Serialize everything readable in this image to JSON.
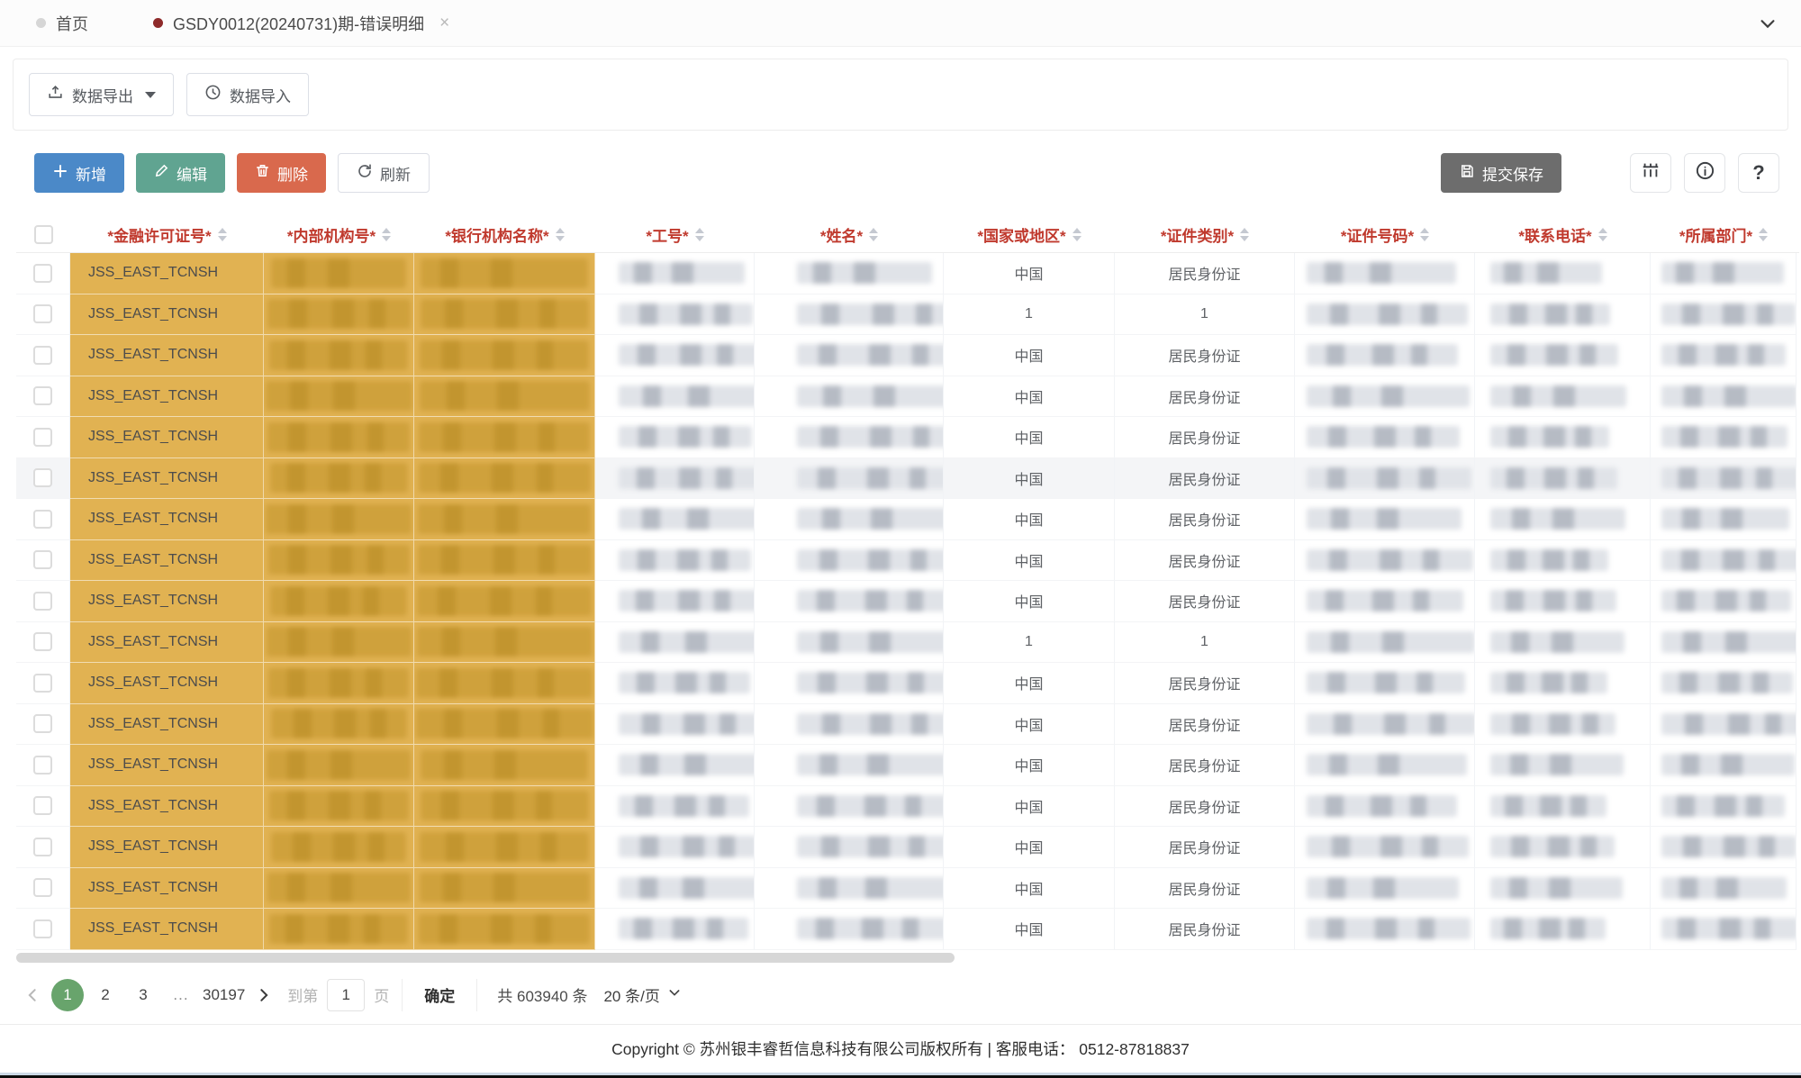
{
  "colors": {
    "gold": "#e1b252",
    "gold-dark": "#cfa13c",
    "red-header": "#c03a2e",
    "blue": "#4b89c8",
    "green": "#60a491",
    "orange": "#d9694d",
    "dark-btn": "#6d6d6d",
    "page-green": "#68a46c",
    "tab-dot-red": "#8e2a2a"
  },
  "tabs": {
    "home_label": "首页",
    "active_label": "GSDY0012(20240731)期-错误明细",
    "close_label": "×"
  },
  "io_toolbar": {
    "export_label": "数据导出",
    "import_label": "数据导入"
  },
  "actions": {
    "add_label": "新增",
    "edit_label": "编辑",
    "delete_label": "删除",
    "refresh_label": "刷新",
    "submit_label": "提交保存",
    "help_label": "?"
  },
  "table": {
    "columns": [
      "*金融许可证号*",
      "*内部机构号*",
      "*银行机构名称*",
      "*工号*",
      "*姓名*",
      "*国家或地区*",
      "*证件类别*",
      "*证件号码*",
      "*联系电话*",
      "*所属部门*"
    ],
    "hover_row_index": 5,
    "rows": [
      {
        "license": "JSS_EAST_TCNSH",
        "country": "中国",
        "id_type": "居民身份证"
      },
      {
        "license": "JSS_EAST_TCNSH",
        "country": "1",
        "id_type": "1"
      },
      {
        "license": "JSS_EAST_TCNSH",
        "country": "中国",
        "id_type": "居民身份证"
      },
      {
        "license": "JSS_EAST_TCNSH",
        "country": "中国",
        "id_type": "居民身份证"
      },
      {
        "license": "JSS_EAST_TCNSH",
        "country": "中国",
        "id_type": "居民身份证"
      },
      {
        "license": "JSS_EAST_TCNSH",
        "country": "中国",
        "id_type": "居民身份证"
      },
      {
        "license": "JSS_EAST_TCNSH",
        "country": "中国",
        "id_type": "居民身份证"
      },
      {
        "license": "JSS_EAST_TCNSH",
        "country": "中国",
        "id_type": "居民身份证"
      },
      {
        "license": "JSS_EAST_TCNSH",
        "country": "中国",
        "id_type": "居民身份证"
      },
      {
        "license": "JSS_EAST_TCNSH",
        "country": "1",
        "id_type": "1"
      },
      {
        "license": "JSS_EAST_TCNSH",
        "country": "中国",
        "id_type": "居民身份证"
      },
      {
        "license": "JSS_EAST_TCNSH",
        "country": "中国",
        "id_type": "居民身份证"
      },
      {
        "license": "JSS_EAST_TCNSH",
        "country": "中国",
        "id_type": "居民身份证"
      },
      {
        "license": "JSS_EAST_TCNSH",
        "country": "中国",
        "id_type": "居民身份证"
      },
      {
        "license": "JSS_EAST_TCNSH",
        "country": "中国",
        "id_type": "居民身份证"
      },
      {
        "license": "JSS_EAST_TCNSH",
        "country": "中国",
        "id_type": "居民身份证"
      },
      {
        "license": "JSS_EAST_TCNSH",
        "country": "中国",
        "id_type": "居民身份证"
      }
    ]
  },
  "pagination": {
    "pages": [
      "1",
      "2",
      "3",
      "...",
      "30197"
    ],
    "active_page": "1",
    "goto_label": "到第",
    "goto_value": "1",
    "page_unit": "页",
    "confirm_label": "确定",
    "total_label": "共 603940 条",
    "per_page_label": "20 条/页"
  },
  "footer": {
    "copyright": "Copyright © 苏州银丰睿哲信息科技有限公司版权所有 | 客服电话： 0512-87818837"
  }
}
